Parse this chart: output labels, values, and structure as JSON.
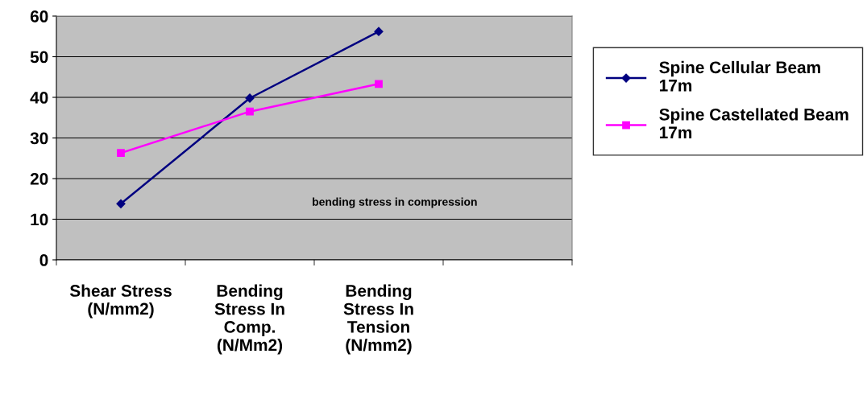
{
  "chart_data": {
    "type": "line",
    "categories": [
      "Shear Stress\n(N/mm2)",
      "Bending\nStress In\nComp.\n(N/Mm2)",
      "Bending\nStress In\nTension\n(N/mm2)",
      null
    ],
    "series": [
      {
        "name": "Spine Cellular Beam\n17m",
        "color": "#000080",
        "marker": "diamond",
        "values": [
          13.8,
          39.8,
          56.2,
          null
        ]
      },
      {
        "name": "Spine Castellated Beam\n17m",
        "color": "#ff00ff",
        "marker": "square",
        "values": [
          26.3,
          36.5,
          43.3,
          null
        ]
      }
    ],
    "ylim": [
      0,
      60
    ],
    "yticks": [
      0,
      10,
      20,
      30,
      40,
      50,
      60
    ],
    "grid": "y",
    "legend": "right",
    "annotations": [
      "bending stress in compression"
    ]
  }
}
